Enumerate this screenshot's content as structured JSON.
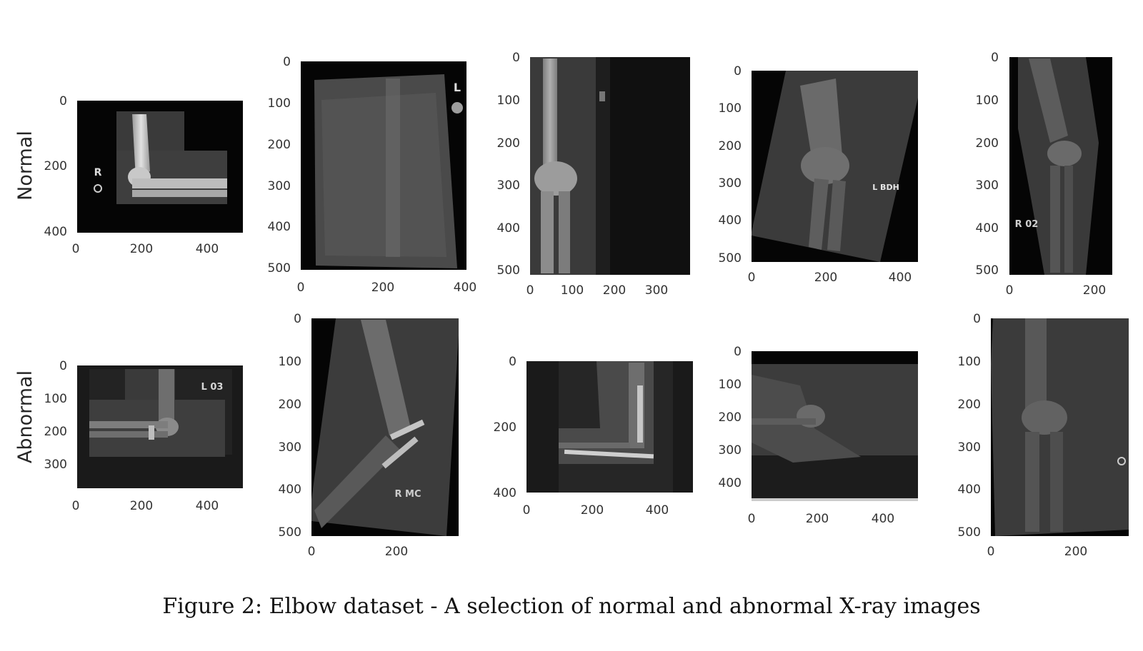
{
  "figure": {
    "caption": "Figure 2: Elbow dataset - A selection of normal and abnormal X-ray images",
    "row_labels": [
      "Normal",
      "Abnormal"
    ],
    "panels": [
      {
        "row": "Normal",
        "image": "elbow-xray-lateral",
        "y_ticks": [
          "0",
          "200",
          "400"
        ],
        "x_ticks": [
          "0",
          "200",
          "400"
        ],
        "marker_text": "R"
      },
      {
        "row": "Normal",
        "image": "elbow-xray-cast",
        "y_ticks": [
          "0",
          "100",
          "200",
          "300",
          "400",
          "500"
        ],
        "x_ticks": [
          "0",
          "200",
          "400"
        ],
        "marker_text": "L"
      },
      {
        "row": "Normal",
        "image": "elbow-xray-ap",
        "y_ticks": [
          "0",
          "100",
          "200",
          "300",
          "400",
          "500"
        ],
        "x_ticks": [
          "0",
          "100",
          "200",
          "300"
        ],
        "marker_text": ""
      },
      {
        "row": "Normal",
        "image": "elbow-xray-rotated",
        "y_ticks": [
          "0",
          "100",
          "200",
          "300",
          "400",
          "500"
        ],
        "x_ticks": [
          "0",
          "200",
          "400"
        ],
        "marker_text": "L BDH"
      },
      {
        "row": "Normal",
        "image": "elbow-xray-oblique",
        "y_ticks": [
          "0",
          "100",
          "200",
          "300",
          "400",
          "500"
        ],
        "x_ticks": [
          "0",
          "200"
        ],
        "marker_text": "R 02"
      },
      {
        "row": "Abnormal",
        "image": "elbow-xray-lateral-flexed",
        "y_ticks": [
          "0",
          "100",
          "200",
          "300"
        ],
        "x_ticks": [
          "0",
          "200",
          "400"
        ],
        "marker_text": "L 03"
      },
      {
        "row": "Abnormal",
        "image": "elbow-xray-plate-screws",
        "y_ticks": [
          "0",
          "100",
          "200",
          "300",
          "400",
          "500"
        ],
        "x_ticks": [
          "0",
          "200"
        ],
        "marker_text": "R MC"
      },
      {
        "row": "Abnormal",
        "image": "elbow-xray-plate-fixation",
        "y_ticks": [
          "0",
          "200",
          "400"
        ],
        "x_ticks": [
          "0",
          "200",
          "400"
        ],
        "marker_text": ""
      },
      {
        "row": "Abnormal",
        "image": "elbow-xray-lateral-extended",
        "y_ticks": [
          "0",
          "100",
          "200",
          "300",
          "400"
        ],
        "x_ticks": [
          "0",
          "200",
          "400"
        ],
        "marker_text": ""
      },
      {
        "row": "Abnormal",
        "image": "elbow-xray-ap-tilted",
        "y_ticks": [
          "0",
          "100",
          "200",
          "300",
          "400",
          "500"
        ],
        "x_ticks": [
          "0",
          "200"
        ],
        "marker_text": ""
      }
    ]
  }
}
